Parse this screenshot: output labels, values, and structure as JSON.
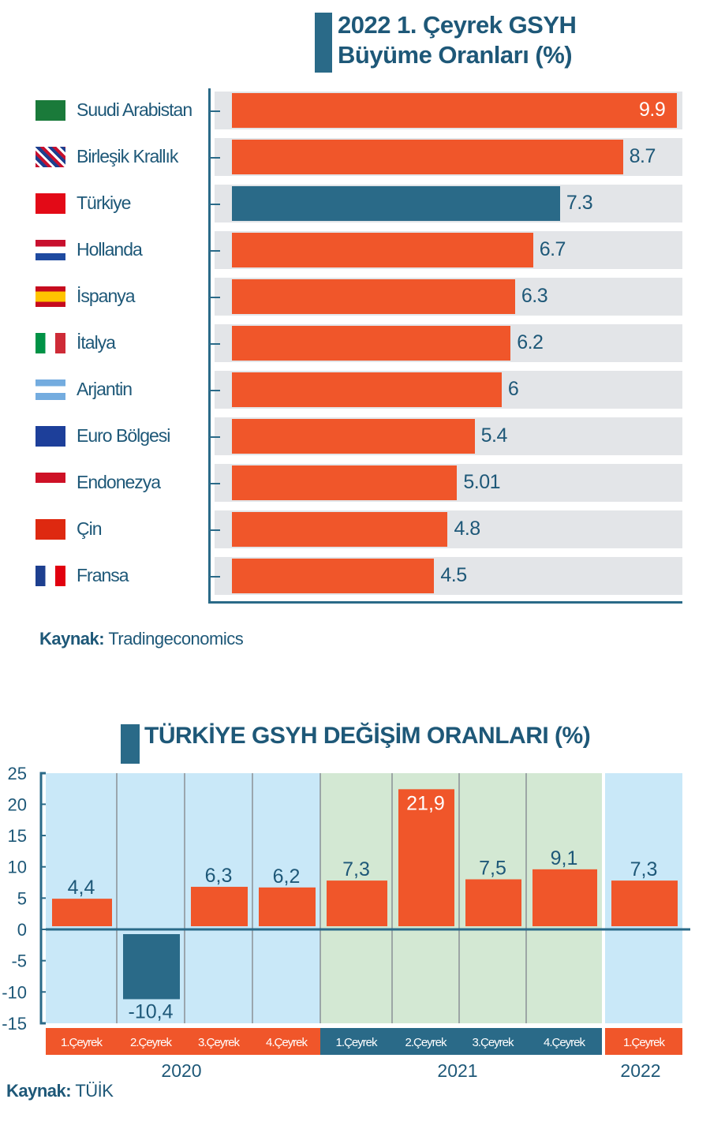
{
  "chart_data": [
    {
      "type": "bar",
      "orientation": "horizontal",
      "title": "2022 1. Çeyrek GSYH Büyüme Oranları (%)",
      "title_line1": "2022 1. Çeyrek GSYH",
      "title_line2": "Büyüme Oranları (%)",
      "categories": [
        "Suudi Arabistan",
        "Birleşik Krallık",
        "Türkiye",
        "Hollanda",
        "İspanya",
        "İtalya",
        "Arjantin",
        "Euro Bölgesi",
        "Endonezya",
        "Çin",
        "Fransa"
      ],
      "value_labels": [
        "9.9",
        "8.7",
        "7.3",
        "6.7",
        "6.3",
        "6.2",
        "6",
        "5.4",
        "5.01",
        "4.8",
        "4.5"
      ],
      "values": [
        9.9,
        8.7,
        7.3,
        6.7,
        6.3,
        6.2,
        6,
        5.4,
        5.01,
        4.8,
        4.5
      ],
      "highlight": "Türkiye",
      "colors": {
        "default": "#f0562a",
        "highlight": "#2a6a88",
        "track": "#e3e5e8"
      },
      "xlim": [
        0,
        9.9
      ],
      "source_label": "Kaynak:",
      "source": "Tradingeconomics"
    },
    {
      "type": "bar",
      "title": "TÜRKİYE GSYH DEĞİŞİM ORANLARI (%)",
      "categories": [
        "1.Çeyrek",
        "2.Çeyrek",
        "3.Çeyrek",
        "4.Çeyrek",
        "1.Çeyrek",
        "2.Çeyrek",
        "3.Çeyrek",
        "4.Çeyrek",
        "1.Çeyrek"
      ],
      "years": [
        "2020",
        "2020",
        "2020",
        "2020",
        "2021",
        "2021",
        "2021",
        "2021",
        "2022"
      ],
      "year_labels": [
        "2020",
        "2021",
        "2022"
      ],
      "values": [
        4.4,
        -10.4,
        6.3,
        6.2,
        7.3,
        21.9,
        7.5,
        9.1,
        7.3
      ],
      "value_labels": [
        "4,4",
        "-10,4",
        "6,3",
        "6,2",
        "7,3",
        "21,9",
        "7,5",
        "9,1",
        "7,3"
      ],
      "ylim": [
        -15,
        25
      ],
      "yticks": [
        "25",
        "20",
        "15",
        "10",
        "5",
        "0",
        "-5",
        "-10",
        "-15"
      ],
      "colors": {
        "positive": "#f0562a",
        "negative": "#2a6a88",
        "bg_2020": "#c9e8f8",
        "bg_2021": "#d3e8d3",
        "bg_2022": "#c9e8f8"
      },
      "source_label": "Kaynak:",
      "source": "TÜİK"
    }
  ]
}
